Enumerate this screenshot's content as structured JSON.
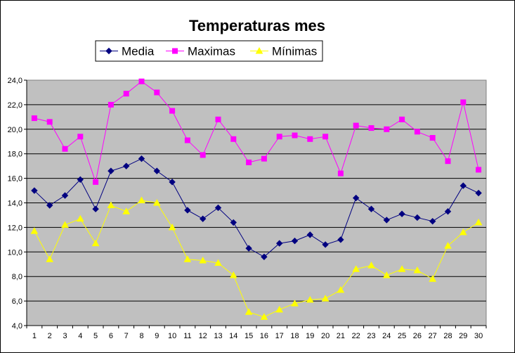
{
  "chart_data": {
    "type": "line",
    "title": "Temperaturas mes",
    "xlabel": "",
    "ylabel": "",
    "categories": [
      "1",
      "2",
      "3",
      "4",
      "5",
      "6",
      "7",
      "8",
      "9",
      "10",
      "11",
      "12",
      "13",
      "14",
      "15",
      "16",
      "17",
      "18",
      "19",
      "20",
      "21",
      "22",
      "23",
      "24",
      "25",
      "26",
      "27",
      "28",
      "29",
      "30"
    ],
    "ylim": [
      4.0,
      24.0
    ],
    "yticks": [
      "4,0",
      "6,0",
      "8,0",
      "10,0",
      "12,0",
      "14,0",
      "16,0",
      "18,0",
      "20,0",
      "22,0",
      "24,0"
    ],
    "grid": true,
    "legend_position": "top",
    "plot_background": "#c0c0c0",
    "series": [
      {
        "name": "Media",
        "color": "#000080",
        "marker": "diamond",
        "values": [
          15.0,
          13.8,
          14.6,
          15.9,
          13.5,
          16.6,
          17.0,
          17.6,
          16.6,
          15.7,
          13.4,
          12.7,
          13.6,
          12.4,
          10.3,
          9.6,
          10.7,
          10.9,
          11.4,
          10.6,
          11.0,
          14.4,
          13.5,
          12.6,
          13.1,
          12.8,
          12.5,
          13.3,
          15.4,
          14.8
        ]
      },
      {
        "name": "Maximas",
        "color": "#ff00ff",
        "marker": "square",
        "values": [
          20.9,
          20.6,
          18.4,
          19.4,
          15.7,
          22.0,
          22.9,
          23.9,
          23.0,
          21.5,
          19.1,
          17.9,
          20.8,
          19.2,
          17.3,
          17.6,
          19.4,
          19.5,
          19.2,
          19.4,
          16.4,
          20.3,
          20.1,
          20.0,
          20.8,
          19.8,
          19.3,
          17.4,
          22.2,
          16.7
        ]
      },
      {
        "name": "Mínimas",
        "color": "#ffff00",
        "marker": "triangle",
        "values": [
          11.7,
          9.4,
          12.2,
          12.7,
          10.7,
          13.8,
          13.3,
          14.2,
          14.0,
          12.0,
          9.4,
          9.3,
          9.1,
          8.1,
          5.1,
          4.7,
          5.3,
          5.8,
          6.1,
          6.2,
          6.9,
          8.6,
          8.9,
          8.1,
          8.6,
          8.5,
          7.8,
          10.5,
          11.6,
          12.4
        ]
      }
    ]
  }
}
